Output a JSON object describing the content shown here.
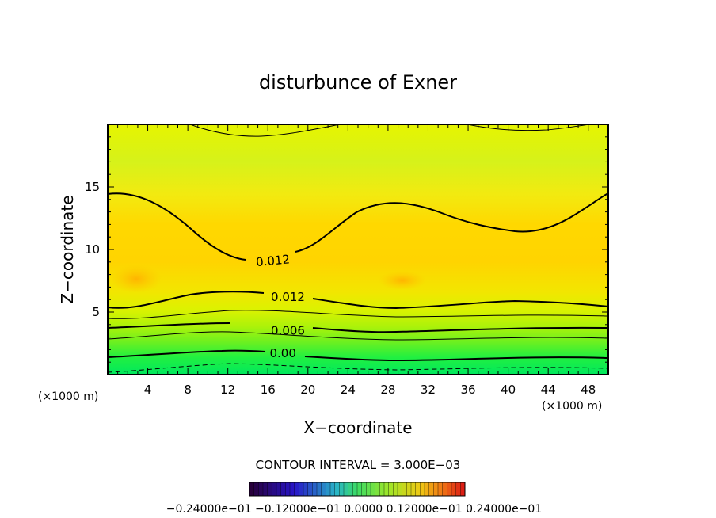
{
  "chart_data": {
    "type": "contour",
    "title": "disturbunce of Exner",
    "xlabel": "X−coordinate",
    "ylabel": "Z−coordinate",
    "x_unit": "(×1000 m)",
    "y_unit": "(×1000 m)",
    "xlim": [
      0,
      50
    ],
    "ylim": [
      0,
      20
    ],
    "xticks": [
      4,
      8,
      12,
      16,
      20,
      24,
      28,
      32,
      36,
      40,
      44,
      48
    ],
    "yticks": [
      5,
      10,
      15
    ],
    "contour_interval_text": "CONTOUR INTERVAL = 3.000E−03",
    "contour_labels": [
      {
        "text": "0.012",
        "x": 16.5,
        "z": 9.1
      },
      {
        "text": "0.012",
        "x": 18.0,
        "z": 6.2
      },
      {
        "text": "0.006",
        "x": 18.0,
        "z": 3.5
      },
      {
        "text": "0.00",
        "x": 17.5,
        "z": 1.7
      }
    ],
    "colorbar_labels_text": "−0.24000e−01 −0.12000e−01 0.0000 0.12000e−01 0.24000e−01",
    "colorbar_range": [
      -0.024,
      0.024
    ]
  }
}
